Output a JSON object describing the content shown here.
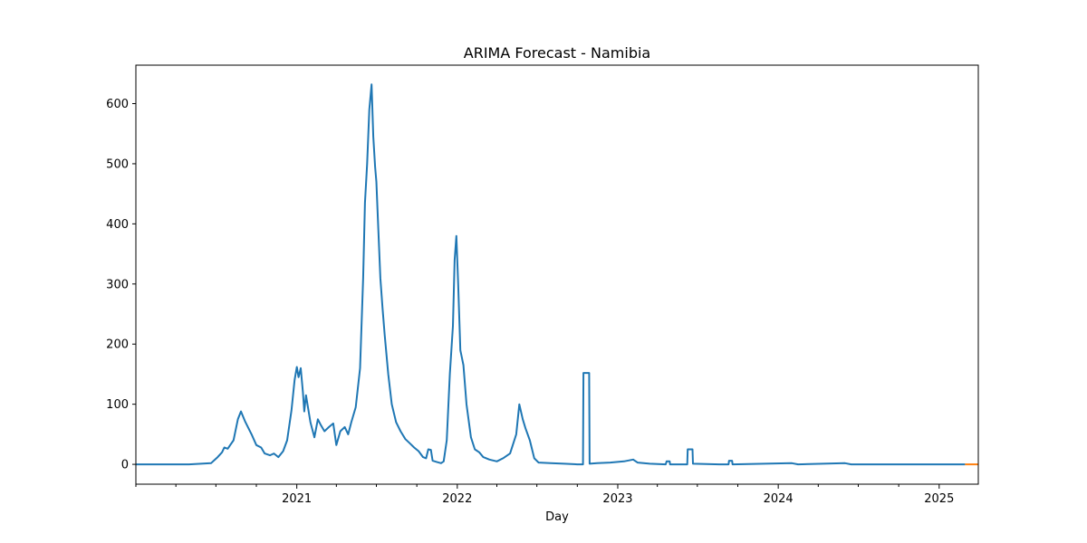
{
  "chart_data": {
    "type": "line",
    "title": "ARIMA Forecast - Namibia",
    "xlabel": "Day",
    "ylabel": "",
    "x_type": "date",
    "xlim": [
      "2020-01-01",
      "2025-03-31"
    ],
    "ylim": [
      -33,
      664
    ],
    "x_ticks": [
      {
        "value": "2021-01-01",
        "label": "2021"
      },
      {
        "value": "2022-01-01",
        "label": "2022"
      },
      {
        "value": "2023-01-01",
        "label": "2023"
      },
      {
        "value": "2024-01-01",
        "label": "2024"
      },
      {
        "value": "2025-01-01",
        "label": "2025"
      }
    ],
    "y_ticks": [
      0,
      100,
      200,
      300,
      400,
      500,
      600
    ],
    "grid": false,
    "legend": "none",
    "series": [
      {
        "color": "#1f77b4",
        "points": [
          [
            "2020-01-01",
            0
          ],
          [
            "2020-03-01",
            0
          ],
          [
            "2020-05-01",
            0
          ],
          [
            "2020-06-20",
            2
          ],
          [
            "2020-07-05",
            12
          ],
          [
            "2020-07-15",
            20
          ],
          [
            "2020-07-20",
            28
          ],
          [
            "2020-07-28",
            26
          ],
          [
            "2020-08-10",
            40
          ],
          [
            "2020-08-20",
            75
          ],
          [
            "2020-08-27",
            88
          ],
          [
            "2020-09-05",
            72
          ],
          [
            "2020-09-20",
            50
          ],
          [
            "2020-10-01",
            32
          ],
          [
            "2020-10-12",
            28
          ],
          [
            "2020-10-20",
            18
          ],
          [
            "2020-11-01",
            15
          ],
          [
            "2020-11-10",
            18
          ],
          [
            "2020-11-20",
            12
          ],
          [
            "2020-12-01",
            22
          ],
          [
            "2020-12-10",
            40
          ],
          [
            "2020-12-20",
            90
          ],
          [
            "2020-12-27",
            140
          ],
          [
            "2021-01-01",
            162
          ],
          [
            "2021-01-05",
            145
          ],
          [
            "2021-01-10",
            160
          ],
          [
            "2021-01-15",
            120
          ],
          [
            "2021-01-18",
            88
          ],
          [
            "2021-01-22",
            115
          ],
          [
            "2021-02-01",
            70
          ],
          [
            "2021-02-10",
            45
          ],
          [
            "2021-02-18",
            75
          ],
          [
            "2021-02-25",
            65
          ],
          [
            "2021-03-05",
            55
          ],
          [
            "2021-03-15",
            62
          ],
          [
            "2021-03-25",
            68
          ],
          [
            "2021-04-01",
            32
          ],
          [
            "2021-04-10",
            55
          ],
          [
            "2021-04-20",
            62
          ],
          [
            "2021-04-28",
            50
          ],
          [
            "2021-05-05",
            70
          ],
          [
            "2021-05-15",
            95
          ],
          [
            "2021-05-25",
            160
          ],
          [
            "2021-06-01",
            310
          ],
          [
            "2021-06-05",
            435
          ],
          [
            "2021-06-10",
            500
          ],
          [
            "2021-06-15",
            590
          ],
          [
            "2021-06-20",
            632
          ],
          [
            "2021-06-24",
            545
          ],
          [
            "2021-06-28",
            495
          ],
          [
            "2021-07-01",
            470
          ],
          [
            "2021-07-05",
            400
          ],
          [
            "2021-07-10",
            310
          ],
          [
            "2021-07-15",
            260
          ],
          [
            "2021-07-20",
            215
          ],
          [
            "2021-07-28",
            150
          ],
          [
            "2021-08-05",
            100
          ],
          [
            "2021-08-15",
            70
          ],
          [
            "2021-08-25",
            55
          ],
          [
            "2021-09-05",
            42
          ],
          [
            "2021-09-15",
            35
          ],
          [
            "2021-09-25",
            28
          ],
          [
            "2021-10-05",
            22
          ],
          [
            "2021-10-15",
            12
          ],
          [
            "2021-10-22",
            10
          ],
          [
            "2021-10-27",
            25
          ],
          [
            "2021-11-02",
            24
          ],
          [
            "2021-11-06",
            6
          ],
          [
            "2021-11-15",
            4
          ],
          [
            "2021-11-25",
            2
          ],
          [
            "2021-12-01",
            5
          ],
          [
            "2021-12-08",
            40
          ],
          [
            "2021-12-15",
            150
          ],
          [
            "2021-12-22",
            230
          ],
          [
            "2021-12-26",
            340
          ],
          [
            "2021-12-30",
            380
          ],
          [
            "2022-01-03",
            300
          ],
          [
            "2022-01-08",
            190
          ],
          [
            "2022-01-15",
            165
          ],
          [
            "2022-01-22",
            100
          ],
          [
            "2022-02-01",
            45
          ],
          [
            "2022-02-10",
            25
          ],
          [
            "2022-02-20",
            20
          ],
          [
            "2022-03-01",
            12
          ],
          [
            "2022-03-15",
            8
          ],
          [
            "2022-04-01",
            5
          ],
          [
            "2022-04-15",
            10
          ],
          [
            "2022-05-01",
            18
          ],
          [
            "2022-05-15",
            50
          ],
          [
            "2022-05-22",
            100
          ],
          [
            "2022-05-30",
            75
          ],
          [
            "2022-06-05",
            60
          ],
          [
            "2022-06-15",
            40
          ],
          [
            "2022-06-25",
            10
          ],
          [
            "2022-07-05",
            3
          ],
          [
            "2022-08-01",
            2
          ],
          [
            "2022-09-01",
            1
          ],
          [
            "2022-10-01",
            0
          ],
          [
            "2022-10-14",
            0
          ],
          [
            "2022-10-15",
            152
          ],
          [
            "2022-10-28",
            152
          ],
          [
            "2022-10-29",
            1
          ],
          [
            "2022-11-15",
            2
          ],
          [
            "2022-12-15",
            3
          ],
          [
            "2023-01-15",
            5
          ],
          [
            "2023-02-05",
            8
          ],
          [
            "2023-02-15",
            3
          ],
          [
            "2023-03-15",
            1
          ],
          [
            "2023-04-20",
            0
          ],
          [
            "2023-04-22",
            5
          ],
          [
            "2023-04-29",
            5
          ],
          [
            "2023-04-30",
            0
          ],
          [
            "2023-06-08",
            0
          ],
          [
            "2023-06-09",
            25
          ],
          [
            "2023-06-20",
            25
          ],
          [
            "2023-06-21",
            1
          ],
          [
            "2023-08-20",
            0
          ],
          [
            "2023-09-10",
            0
          ],
          [
            "2023-09-11",
            6
          ],
          [
            "2023-09-18",
            6
          ],
          [
            "2023-09-19",
            0
          ],
          [
            "2023-12-01",
            1
          ],
          [
            "2024-02-01",
            2
          ],
          [
            "2024-02-15",
            0
          ],
          [
            "2024-06-01",
            2
          ],
          [
            "2024-06-15",
            0
          ],
          [
            "2024-09-01",
            0
          ],
          [
            "2024-12-01",
            0
          ],
          [
            "2025-03-01",
            0
          ]
        ]
      },
      {
        "color": "#ff7f0e",
        "points": [
          [
            "2025-03-01",
            0
          ],
          [
            "2025-03-31",
            0
          ]
        ]
      }
    ]
  }
}
